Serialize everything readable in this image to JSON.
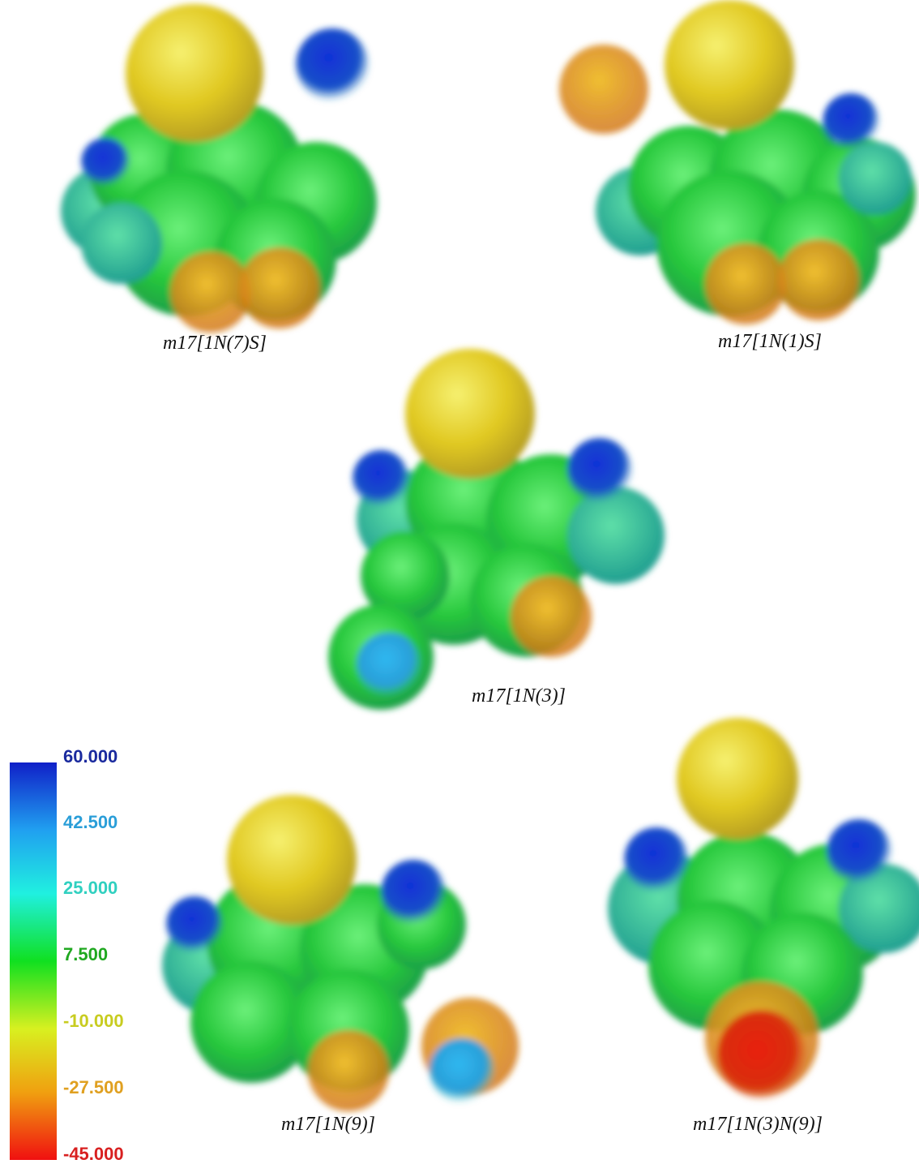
{
  "molecules": [
    {
      "label": "m17[1N(7)S]"
    },
    {
      "label": "m17[1N(1)S]"
    },
    {
      "label": "m17[1N(3)]"
    },
    {
      "label": "m17[1N(9)]"
    },
    {
      "label": "m17[1N(3)N(9)]"
    }
  ],
  "color_scale": {
    "ticks": [
      "60.000",
      "42.500",
      "25.000",
      "7.500",
      "-10.000",
      "-27.500",
      "-45.000"
    ]
  }
}
